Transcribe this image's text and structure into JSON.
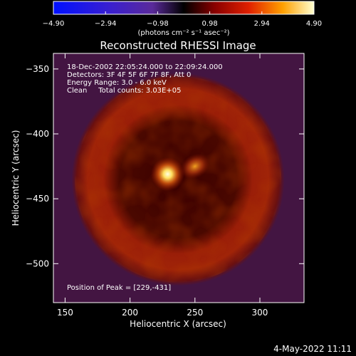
{
  "chart_data": {
    "type": "heatmap",
    "title": "Reconstructed RHESSI Image",
    "xlabel": "Heliocentric X (arcsec)",
    "ylabel": "Heliocentric Y (arcsec)",
    "xlim": [
      141,
      334
    ],
    "ylim": [
      -530,
      -338
    ],
    "x_ticks": [
      150,
      200,
      250,
      300
    ],
    "y_ticks": [
      -350,
      -400,
      -450,
      -500
    ],
    "colorbar": {
      "label": "(photons cm⁻² s⁻¹ asec⁻²)",
      "range": [
        -4.9,
        4.9
      ],
      "ticks": [
        "-4.90",
        "-2.94",
        "-0.98",
        "0.98",
        "2.94",
        "4.90"
      ]
    },
    "annotations": [
      "18-Dec-2002 22:05:24.000 to 22:09:24.000",
      "Detectors: 3F 4F 5F 6F 7F 8F, Att 0",
      "Energy Range: 3.0 - 6.0 keV",
      "Clean     Total counts: 3.03E+05"
    ],
    "peak_label": "Position of Peak = [229,-431]",
    "peak_position": [
      229,
      -431
    ],
    "ring": {
      "center": [
        237,
        -435
      ],
      "inner_radius": 55,
      "outer_radius": 82
    },
    "secondary_source": [
      250,
      -425
    ]
  },
  "footer_date": "4-May-2022 11:11"
}
